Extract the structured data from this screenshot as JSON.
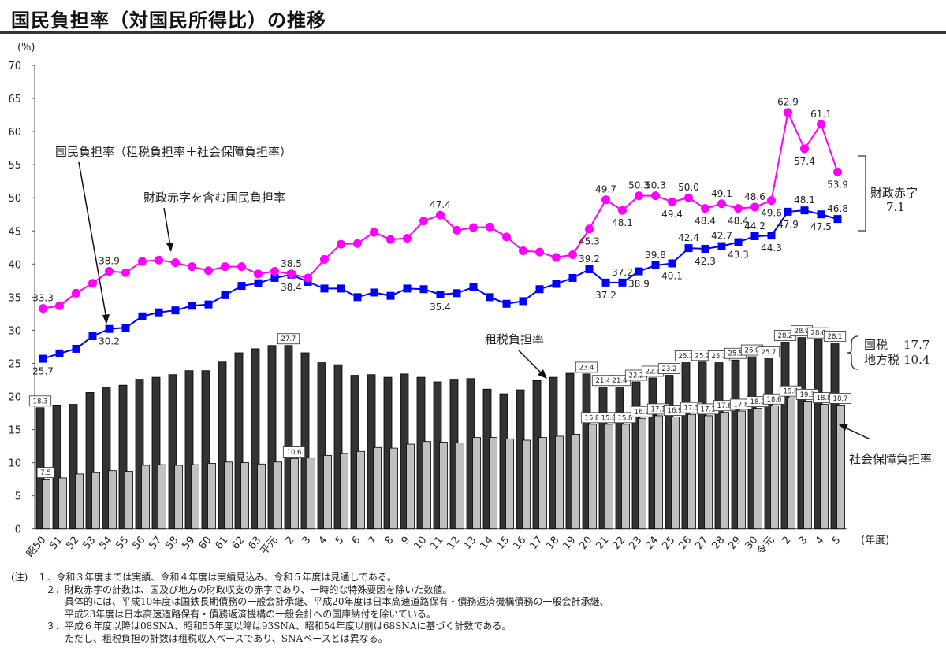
{
  "title": "国民負担率（対国民所得比）の推移",
  "chart_data": {
    "type": "bar+line",
    "title": "国民負担率（対国民所得比）の推移",
    "ylabel": "(%)",
    "xlabel": "(年度)",
    "ylim": [
      0,
      70
    ],
    "yticks": [
      0,
      5,
      10,
      15,
      20,
      25,
      30,
      35,
      40,
      45,
      50,
      55,
      60,
      65,
      70
    ],
    "categories": [
      "昭50",
      "51",
      "52",
      "53",
      "54",
      "55",
      "56",
      "57",
      "58",
      "59",
      "60",
      "61",
      "62",
      "63",
      "平元",
      "2",
      "3",
      "4",
      "5",
      "6",
      "7",
      "8",
      "9",
      "10",
      "11",
      "12",
      "13",
      "14",
      "15",
      "16",
      "17",
      "18",
      "19",
      "20",
      "21",
      "22",
      "23",
      "24",
      "25",
      "26",
      "27",
      "28",
      "29",
      "30",
      "令元",
      "2",
      "3",
      "4",
      "5"
    ],
    "series": [
      {
        "name": "租税負担率",
        "type": "bar",
        "color": "#333333",
        "values": [
          18.3,
          18.7,
          18.8,
          20.6,
          21.4,
          21.7,
          22.6,
          22.9,
          23.3,
          23.9,
          23.9,
          25.2,
          26.6,
          27.2,
          27.7,
          27.7,
          26.6,
          25.1,
          24.8,
          23.2,
          23.3,
          22.9,
          23.4,
          22.9,
          22.2,
          22.6,
          22.7,
          21.1,
          20.4,
          21.0,
          22.4,
          22.9,
          23.5,
          23.4,
          21.4,
          21.4,
          22.2,
          22.8,
          23.2,
          25.1,
          25.2,
          25.1,
          25.5,
          26.0,
          25.7,
          28.2,
          28.9,
          28.6,
          28.1
        ],
        "labeled": [
          0,
          15,
          33,
          34,
          35,
          36,
          37,
          38,
          39,
          40,
          41,
          42,
          43,
          44,
          45,
          46,
          47,
          48
        ]
      },
      {
        "name": "社会保障負担率",
        "type": "bar",
        "color": "#c0c0c0",
        "values": [
          7.5,
          7.7,
          8.3,
          8.5,
          8.8,
          8.7,
          9.6,
          9.7,
          9.6,
          9.7,
          9.9,
          10.1,
          10.0,
          9.8,
          10.1,
          10.6,
          10.7,
          11.1,
          11.4,
          11.7,
          12.3,
          12.2,
          12.8,
          13.2,
          13.1,
          13.0,
          13.8,
          13.8,
          13.6,
          13.4,
          13.8,
          14.0,
          14.3,
          15.8,
          15.8,
          15.8,
          16.7,
          17.1,
          16.9,
          17.3,
          17.1,
          17.6,
          17.8,
          18.2,
          18.6,
          19.8,
          19.3,
          18.8,
          18.7
        ],
        "labeled": [
          0,
          15,
          33,
          34,
          35,
          36,
          37,
          38,
          39,
          40,
          41,
          42,
          43,
          44,
          45,
          46,
          47,
          48
        ]
      },
      {
        "name": "国民負担率（租税負担率＋社会保障負担率）",
        "type": "line",
        "color": "#0000ff",
        "marker": "square",
        "values": [
          25.7,
          26.5,
          27.2,
          29.1,
          30.2,
          30.4,
          32.1,
          32.7,
          33.0,
          33.7,
          33.9,
          35.3,
          36.7,
          37.1,
          37.9,
          38.4,
          37.3,
          36.3,
          36.3,
          35.0,
          35.7,
          35.2,
          36.3,
          36.2,
          35.4,
          35.6,
          36.5,
          35.0,
          34.0,
          34.4,
          36.2,
          37.0,
          37.9,
          39.2,
          37.2,
          37.2,
          38.9,
          39.8,
          40.1,
          42.4,
          42.3,
          42.7,
          43.3,
          44.2,
          44.3,
          47.9,
          48.1,
          47.5,
          46.8
        ],
        "labeled": [
          0,
          4,
          15,
          24,
          33,
          34,
          35,
          36,
          37,
          38,
          39,
          40,
          41,
          42,
          43,
          44,
          45,
          46,
          47,
          48
        ]
      },
      {
        "name": "財政赤字を含む国民負担率",
        "type": "line",
        "color": "#ff00ff",
        "marker": "circle",
        "values": [
          33.3,
          33.7,
          35.6,
          37.1,
          38.9,
          38.7,
          40.4,
          40.6,
          40.2,
          39.6,
          39.0,
          39.6,
          39.6,
          38.5,
          38.9,
          38.5,
          37.9,
          40.7,
          43.0,
          43.1,
          44.8,
          43.7,
          43.9,
          46.5,
          47.4,
          45.1,
          45.5,
          45.6,
          44.1,
          42.0,
          41.8,
          41.0,
          41.4,
          45.3,
          49.7,
          48.1,
          50.3,
          50.3,
          49.4,
          50.0,
          48.4,
          49.1,
          48.4,
          48.6,
          49.6,
          62.9,
          57.4,
          61.1,
          53.9
        ],
        "labeled": [
          0,
          4,
          15,
          24,
          33,
          34,
          35,
          36,
          37,
          38,
          39,
          40,
          41,
          42,
          43,
          44,
          45,
          46,
          47,
          48
        ]
      }
    ],
    "annotations": {
      "total": "国民負担率（租税負担率＋社会保障負担率）",
      "with_deficit": "財政赤字を含む国民負担率",
      "tax": "租税負担率",
      "social": "社会保障負担率",
      "deficit_label": "財政赤字",
      "deficit_value": "7.1",
      "national_tax_label": "国税",
      "national_tax_value": "17.7",
      "local_tax_label": "地方税",
      "local_tax_value": "10.4"
    },
    "legend": "none",
    "grid": false
  },
  "notes": [
    "(注)　１．令和３年度までは実績、令和４年度は実績見込み、令和５年度は見通しである。",
    "２．財政赤字の計数は、国及び地方の財政収支の赤字であり、一時的な特殊要因を除いた数値。",
    "具体的には、平成10年度は国鉄長期債務の一般会計承継、平成20年度は日本高速道路保有・債務返済機構債務の一般会計承継、",
    "平成23年度は日本高速道路保有・債務返済機構の一般会計への国庫納付を除いている。",
    "３．平成６年度以降は08SNA、昭和55年度以降は93SNA、昭和54年度以前は68SNAに基づく計数である。",
    "ただし、租税負担の計数は租税収入ベースであり、SNAベースとは異なる。"
  ]
}
